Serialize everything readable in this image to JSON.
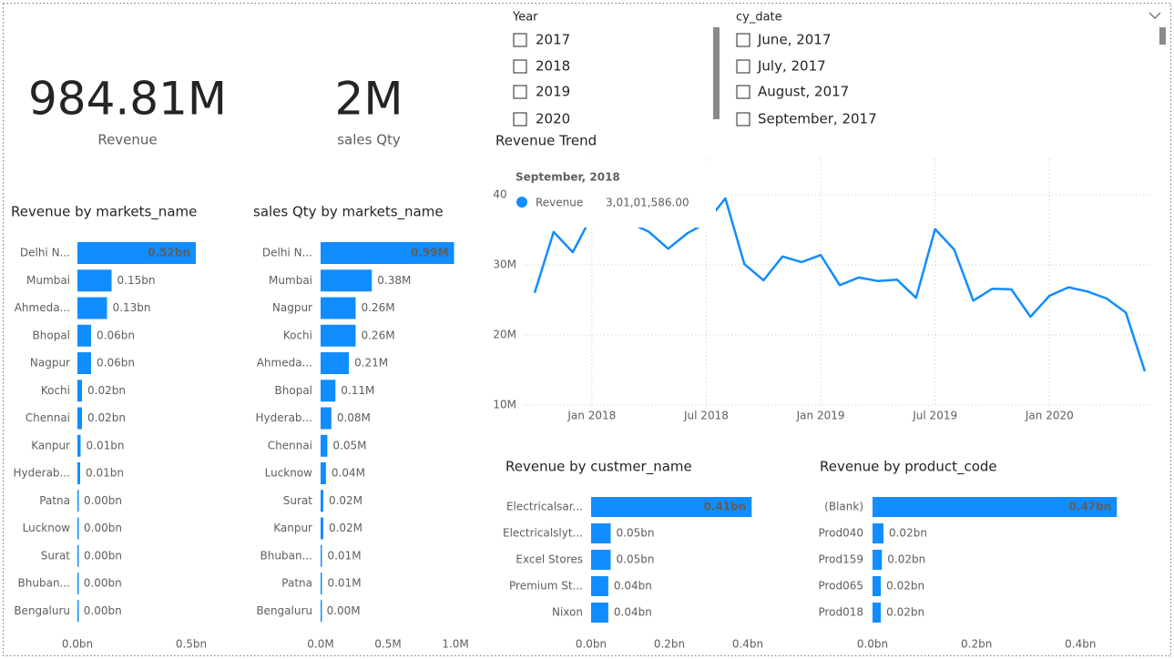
{
  "cards": [
    {
      "value": "984.81M",
      "label": "Revenue"
    },
    {
      "value": "2M",
      "label": "sales Qty"
    }
  ],
  "slicers": [
    {
      "title": "Year",
      "items": [
        "2017",
        "2018",
        "2019",
        "2020"
      ]
    },
    {
      "title": "cy_date",
      "items": [
        "June, 2017",
        "July, 2017",
        "August, 2017",
        "September, 2017"
      ]
    }
  ],
  "tooltip": {
    "title": "September, 2018",
    "value_label": "3,01,01,586.00"
  },
  "chart_data": [
    {
      "type": "hbar",
      "title": "Revenue by markets_name",
      "color": "#118dff",
      "categories": [
        "Delhi N...",
        "Mumbai",
        "Ahmeda...",
        "Bhopal",
        "Nagpur",
        "Kochi",
        "Chennai",
        "Kanpur",
        "Hyderab...",
        "Patna",
        "Lucknow",
        "Surat",
        "Bhuban...",
        "Bengaluru"
      ],
      "values": [
        0.52,
        0.15,
        0.13,
        0.06,
        0.06,
        0.02,
        0.02,
        0.014,
        0.012,
        0.004,
        0.004,
        0.004,
        0.003,
        0.003
      ],
      "value_labels": [
        "0.52bn",
        "0.15bn",
        "0.13bn",
        "0.06bn",
        "0.06bn",
        "0.02bn",
        "0.02bn",
        "0.01bn",
        "0.01bn",
        "0.00bn",
        "0.00bn",
        "0.00bn",
        "0.00bn",
        "0.00bn"
      ],
      "xlim": [
        0,
        0.54
      ],
      "xticks": [
        {
          "value": 0,
          "label": "0.0bn"
        },
        {
          "value": 0.5,
          "label": "0.5bn"
        }
      ]
    },
    {
      "type": "hbar",
      "title": "sales Qty by markets_name",
      "color": "#118dff",
      "categories": [
        "Delhi N...",
        "Mumbai",
        "Nagpur",
        "Kochi",
        "Ahmeda...",
        "Bhopal",
        "Hyderab...",
        "Chennai",
        "Lucknow",
        "Surat",
        "Kanpur",
        "Bhuban...",
        "Patna",
        "Bengaluru"
      ],
      "values": [
        0.99,
        0.38,
        0.26,
        0.26,
        0.21,
        0.11,
        0.08,
        0.05,
        0.04,
        0.02,
        0.02,
        0.01,
        0.01,
        0.004
      ],
      "value_labels": [
        "0.99M",
        "0.38M",
        "0.26M",
        "0.26M",
        "0.21M",
        "0.11M",
        "0.08M",
        "0.05M",
        "0.04M",
        "0.02M",
        "0.02M",
        "0.01M",
        "0.01M",
        "0.00M"
      ],
      "xlim": [
        0,
        1.02
      ],
      "xticks": [
        {
          "value": 0,
          "label": "0.0M"
        },
        {
          "value": 0.5,
          "label": "0.5M"
        },
        {
          "value": 1.0,
          "label": "1.0M"
        }
      ]
    },
    {
      "type": "line",
      "title": "Revenue Trend",
      "grid": true,
      "x": [
        "2017-10",
        "2017-11",
        "2017-12",
        "2018-01",
        "2018-02",
        "2018-03",
        "2018-04",
        "2018-05",
        "2018-06",
        "2018-07",
        "2018-08",
        "2018-09",
        "2018-10",
        "2018-11",
        "2018-12",
        "2019-01",
        "2019-02",
        "2019-03",
        "2019-04",
        "2019-05",
        "2019-06",
        "2019-07",
        "2019-08",
        "2019-09",
        "2019-10",
        "2019-11",
        "2019-12",
        "2020-01",
        "2020-02",
        "2020-03",
        "2020-04",
        "2020-05",
        "2020-06"
      ],
      "series": [
        {
          "name": "Revenue",
          "color": "#118dff",
          "values": [
            26.0,
            34.7,
            31.8,
            37.0,
            38.0,
            36.0,
            34.7,
            32.3,
            34.5,
            36.0,
            39.5,
            30.1,
            27.8,
            31.2,
            30.4,
            31.4,
            27.1,
            28.2,
            27.7,
            27.9,
            25.3,
            35.1,
            32.2,
            24.9,
            26.6,
            26.5,
            22.6,
            25.6,
            26.8,
            26.2,
            25.2,
            23.2,
            14.8
          ]
        }
      ],
      "xlim": [
        "2017-10",
        "2020-06"
      ],
      "xticks": [
        {
          "value": "2018-01",
          "label": "Jan 2018"
        },
        {
          "value": "2018-07",
          "label": "Jul 2018"
        },
        {
          "value": "2019-01",
          "label": "Jan 2019"
        },
        {
          "value": "2019-07",
          "label": "Jul 2019"
        },
        {
          "value": "2020-01",
          "label": "Jan 2020"
        }
      ],
      "ylim": [
        10,
        40
      ],
      "yticks": [
        {
          "value": 10,
          "label": "10M"
        },
        {
          "value": 20,
          "label": "20M"
        },
        {
          "value": 30,
          "label": "30M"
        },
        {
          "value": 40,
          "label": "40M"
        }
      ]
    },
    {
      "type": "hbar",
      "title": "Revenue by custmer_name",
      "color": "#118dff",
      "categories": [
        "Electricalsar...",
        "Electricalslyt...",
        "Excel Stores",
        "Premium St...",
        "Nixon"
      ],
      "values": [
        0.41,
        0.05,
        0.05,
        0.044,
        0.044
      ],
      "value_labels": [
        "0.41bn",
        "0.05bn",
        "0.05bn",
        "0.04bn",
        "0.04bn"
      ],
      "xlim": [
        0,
        0.5
      ],
      "xticks": [
        {
          "value": 0,
          "label": "0.0bn"
        },
        {
          "value": 0.2,
          "label": "0.2bn"
        },
        {
          "value": 0.4,
          "label": "0.4bn"
        }
      ]
    },
    {
      "type": "hbar",
      "title": "Revenue by product_code",
      "color": "#118dff",
      "categories": [
        "(Blank)",
        "Prod040",
        "Prod159",
        "Prod065",
        "Prod018"
      ],
      "values": [
        0.47,
        0.021,
        0.018,
        0.016,
        0.016
      ],
      "value_labels": [
        "0.47bn",
        "0.02bn",
        "0.02bn",
        "0.02bn",
        "0.02bn"
      ],
      "xlim": [
        0,
        0.48
      ],
      "xticks": [
        {
          "value": 0,
          "label": "0.0bn"
        },
        {
          "value": 0.2,
          "label": "0.2bn"
        },
        {
          "value": 0.4,
          "label": "0.4bn"
        }
      ]
    }
  ]
}
